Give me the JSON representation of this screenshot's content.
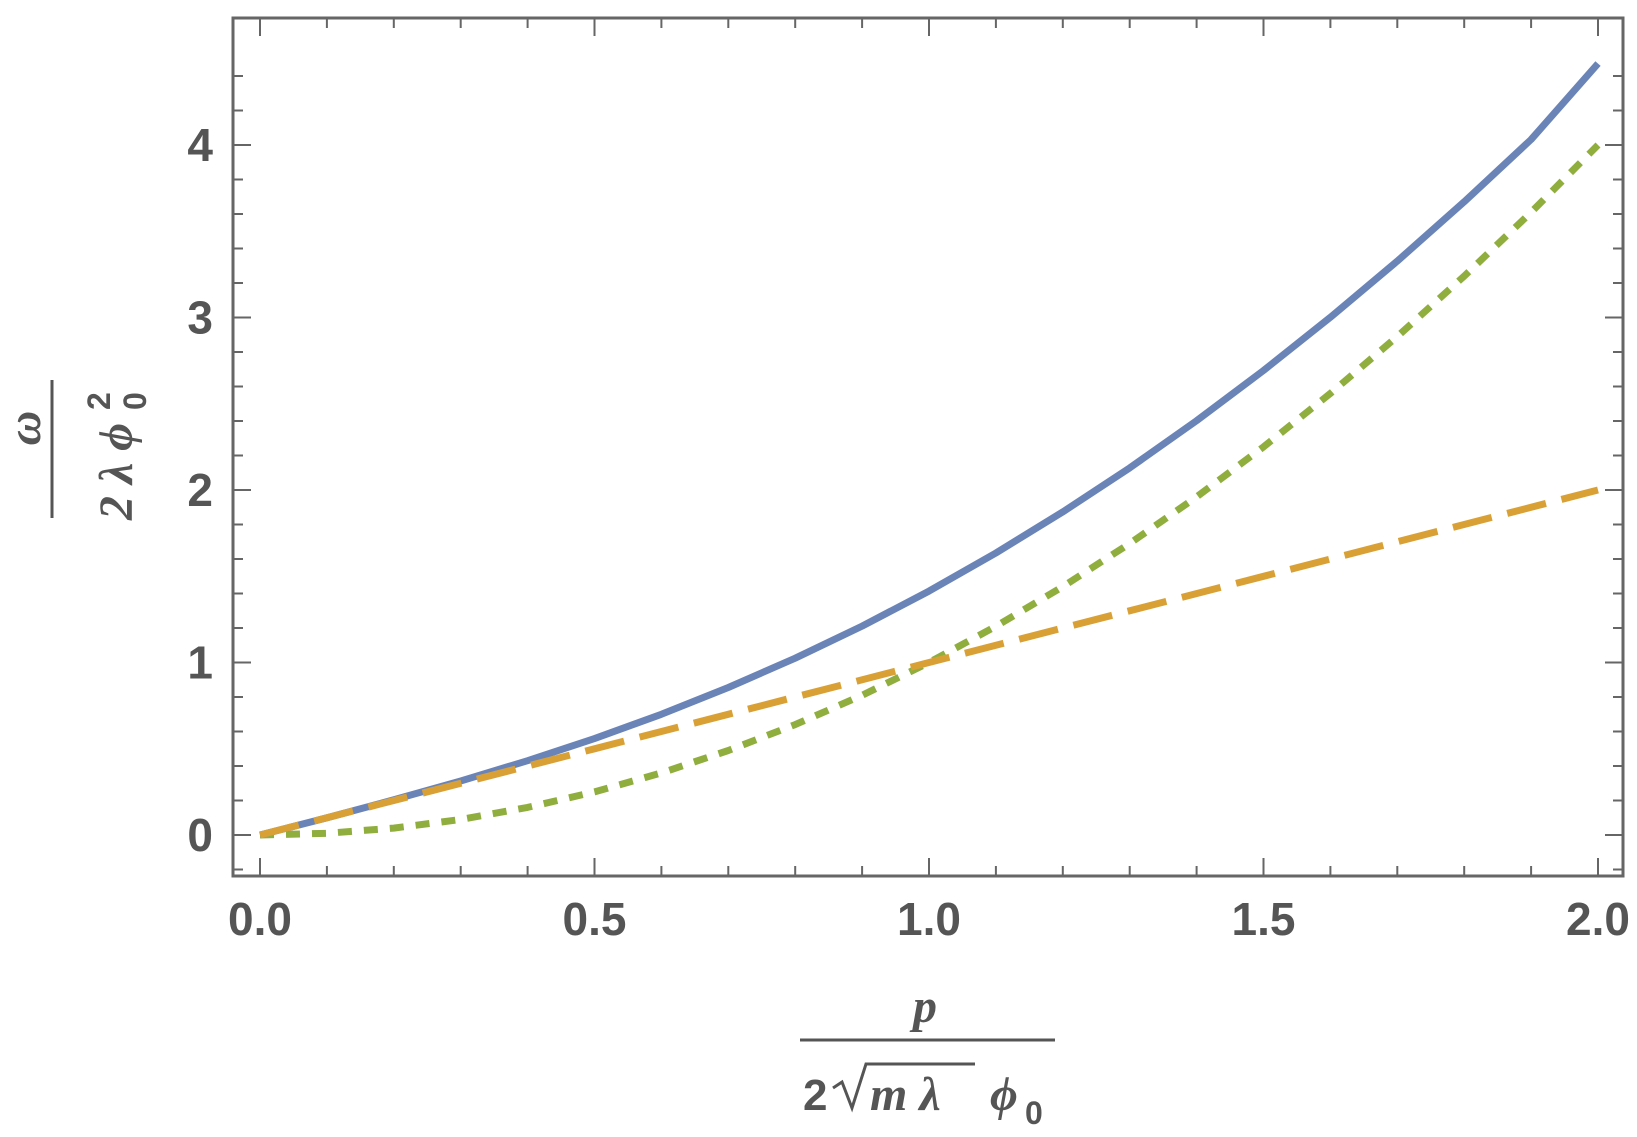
{
  "chart_data": {
    "type": "line",
    "xlim": [
      0,
      2
    ],
    "ylim": [
      -0.25,
      4.7
    ],
    "x_ticks": [
      0.0,
      0.5,
      1.0,
      1.5,
      2.0
    ],
    "x_tick_labels": [
      "0.0",
      "0.5",
      "1.0",
      "1.5",
      "2.0"
    ],
    "y_ticks": [
      0,
      1,
      2,
      3,
      4
    ],
    "y_tick_labels": [
      "0",
      "1",
      "2",
      "3",
      "4"
    ],
    "xlabel": {
      "numerator": "p",
      "denominator_lead": "2",
      "denominator_radicand": "m λ",
      "denominator_tail": "ϕ",
      "denominator_tail_sub": "0"
    },
    "ylabel": {
      "numerator": "ω",
      "denominator": "2 λ ϕ",
      "denominator_sub": "0",
      "denominator_sup": "2"
    },
    "grid": false,
    "legend": "none",
    "series": [
      {
        "style": "solid",
        "color": "#6a84b8",
        "x": [
          0,
          0.1,
          0.2,
          0.3,
          0.4,
          0.5,
          0.6,
          0.7,
          0.8,
          0.9,
          1.0,
          1.1,
          1.2,
          1.3,
          1.4,
          1.5,
          1.6,
          1.7,
          1.8,
          1.9,
          2.0
        ],
        "y": [
          0,
          0.1,
          0.204,
          0.313,
          0.431,
          0.559,
          0.7,
          0.855,
          1.025,
          1.211,
          1.414,
          1.635,
          1.873,
          2.128,
          2.402,
          2.693,
          3.001,
          3.327,
          3.671,
          4.032,
          4.472
        ]
      },
      {
        "style": "dashed",
        "color": "#d9a135",
        "x": [
          0,
          0.5,
          1.0,
          1.5,
          2.0
        ],
        "y": [
          0,
          0.5,
          1.0,
          1.5,
          2.0
        ]
      },
      {
        "style": "dotted",
        "color": "#8fae3e",
        "x": [
          0,
          0.1,
          0.2,
          0.3,
          0.4,
          0.5,
          0.6,
          0.7,
          0.8,
          0.9,
          1.0,
          1.1,
          1.2,
          1.3,
          1.4,
          1.5,
          1.6,
          1.7,
          1.8,
          1.9,
          2.0
        ],
        "y": [
          0,
          0.01,
          0.04,
          0.09,
          0.16,
          0.25,
          0.36,
          0.49,
          0.64,
          0.81,
          1.0,
          1.21,
          1.44,
          1.69,
          1.96,
          2.25,
          2.56,
          2.89,
          3.24,
          3.61,
          4.0
        ]
      }
    ]
  },
  "colors": {
    "axis": "#666666",
    "text": "#555555"
  }
}
